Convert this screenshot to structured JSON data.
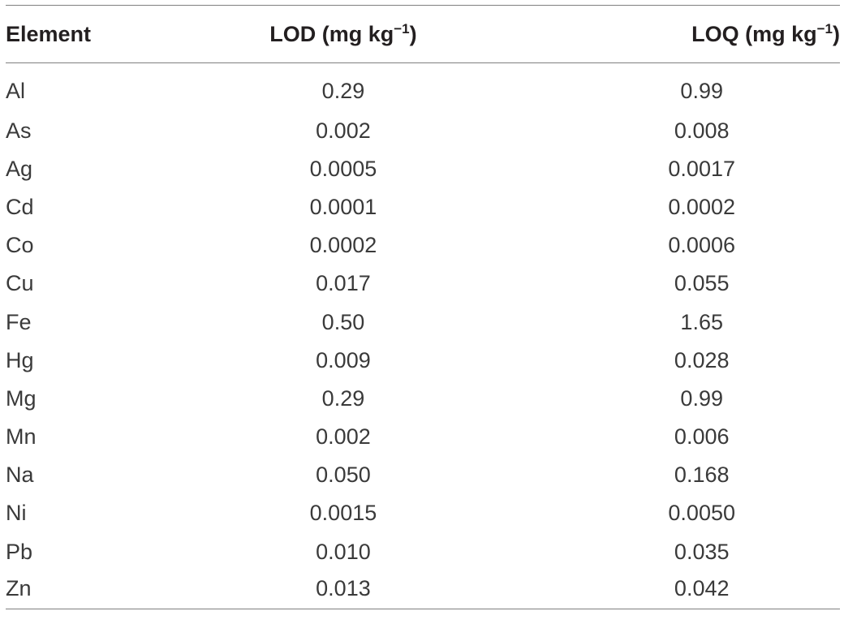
{
  "table": {
    "headers": {
      "element": "Element",
      "lod_main": "LOD (mg kg",
      "lod_sup": "−1",
      "lod_close": ")",
      "loq_main": "LOQ (mg kg",
      "loq_sup": "−1",
      "loq_close": ")"
    },
    "rows": [
      {
        "element": "Al",
        "lod": "0.29",
        "loq": "0.99"
      },
      {
        "element": "As",
        "lod": "0.002",
        "loq": "0.008"
      },
      {
        "element": "Ag",
        "lod": "0.0005",
        "loq": "0.0017"
      },
      {
        "element": "Cd",
        "lod": "0.0001",
        "loq": "0.0002"
      },
      {
        "element": "Co",
        "lod": "0.0002",
        "loq": "0.0006"
      },
      {
        "element": "Cu",
        "lod": "0.017",
        "loq": "0.055"
      },
      {
        "element": "Fe",
        "lod": "0.50",
        "loq": "1.65"
      },
      {
        "element": "Hg",
        "lod": "0.009",
        "loq": "0.028"
      },
      {
        "element": "Mg",
        "lod": "0.29",
        "loq": "0.99"
      },
      {
        "element": "Mn",
        "lod": "0.002",
        "loq": "0.006"
      },
      {
        "element": "Na",
        "lod": "0.050",
        "loq": "0.168"
      },
      {
        "element": "Ni",
        "lod": "0.0015",
        "loq": "0.0050"
      },
      {
        "element": "Pb",
        "lod": "0.010",
        "loq": "0.035"
      },
      {
        "element": "Zn",
        "lod": "0.013",
        "loq": "0.042"
      }
    ]
  }
}
